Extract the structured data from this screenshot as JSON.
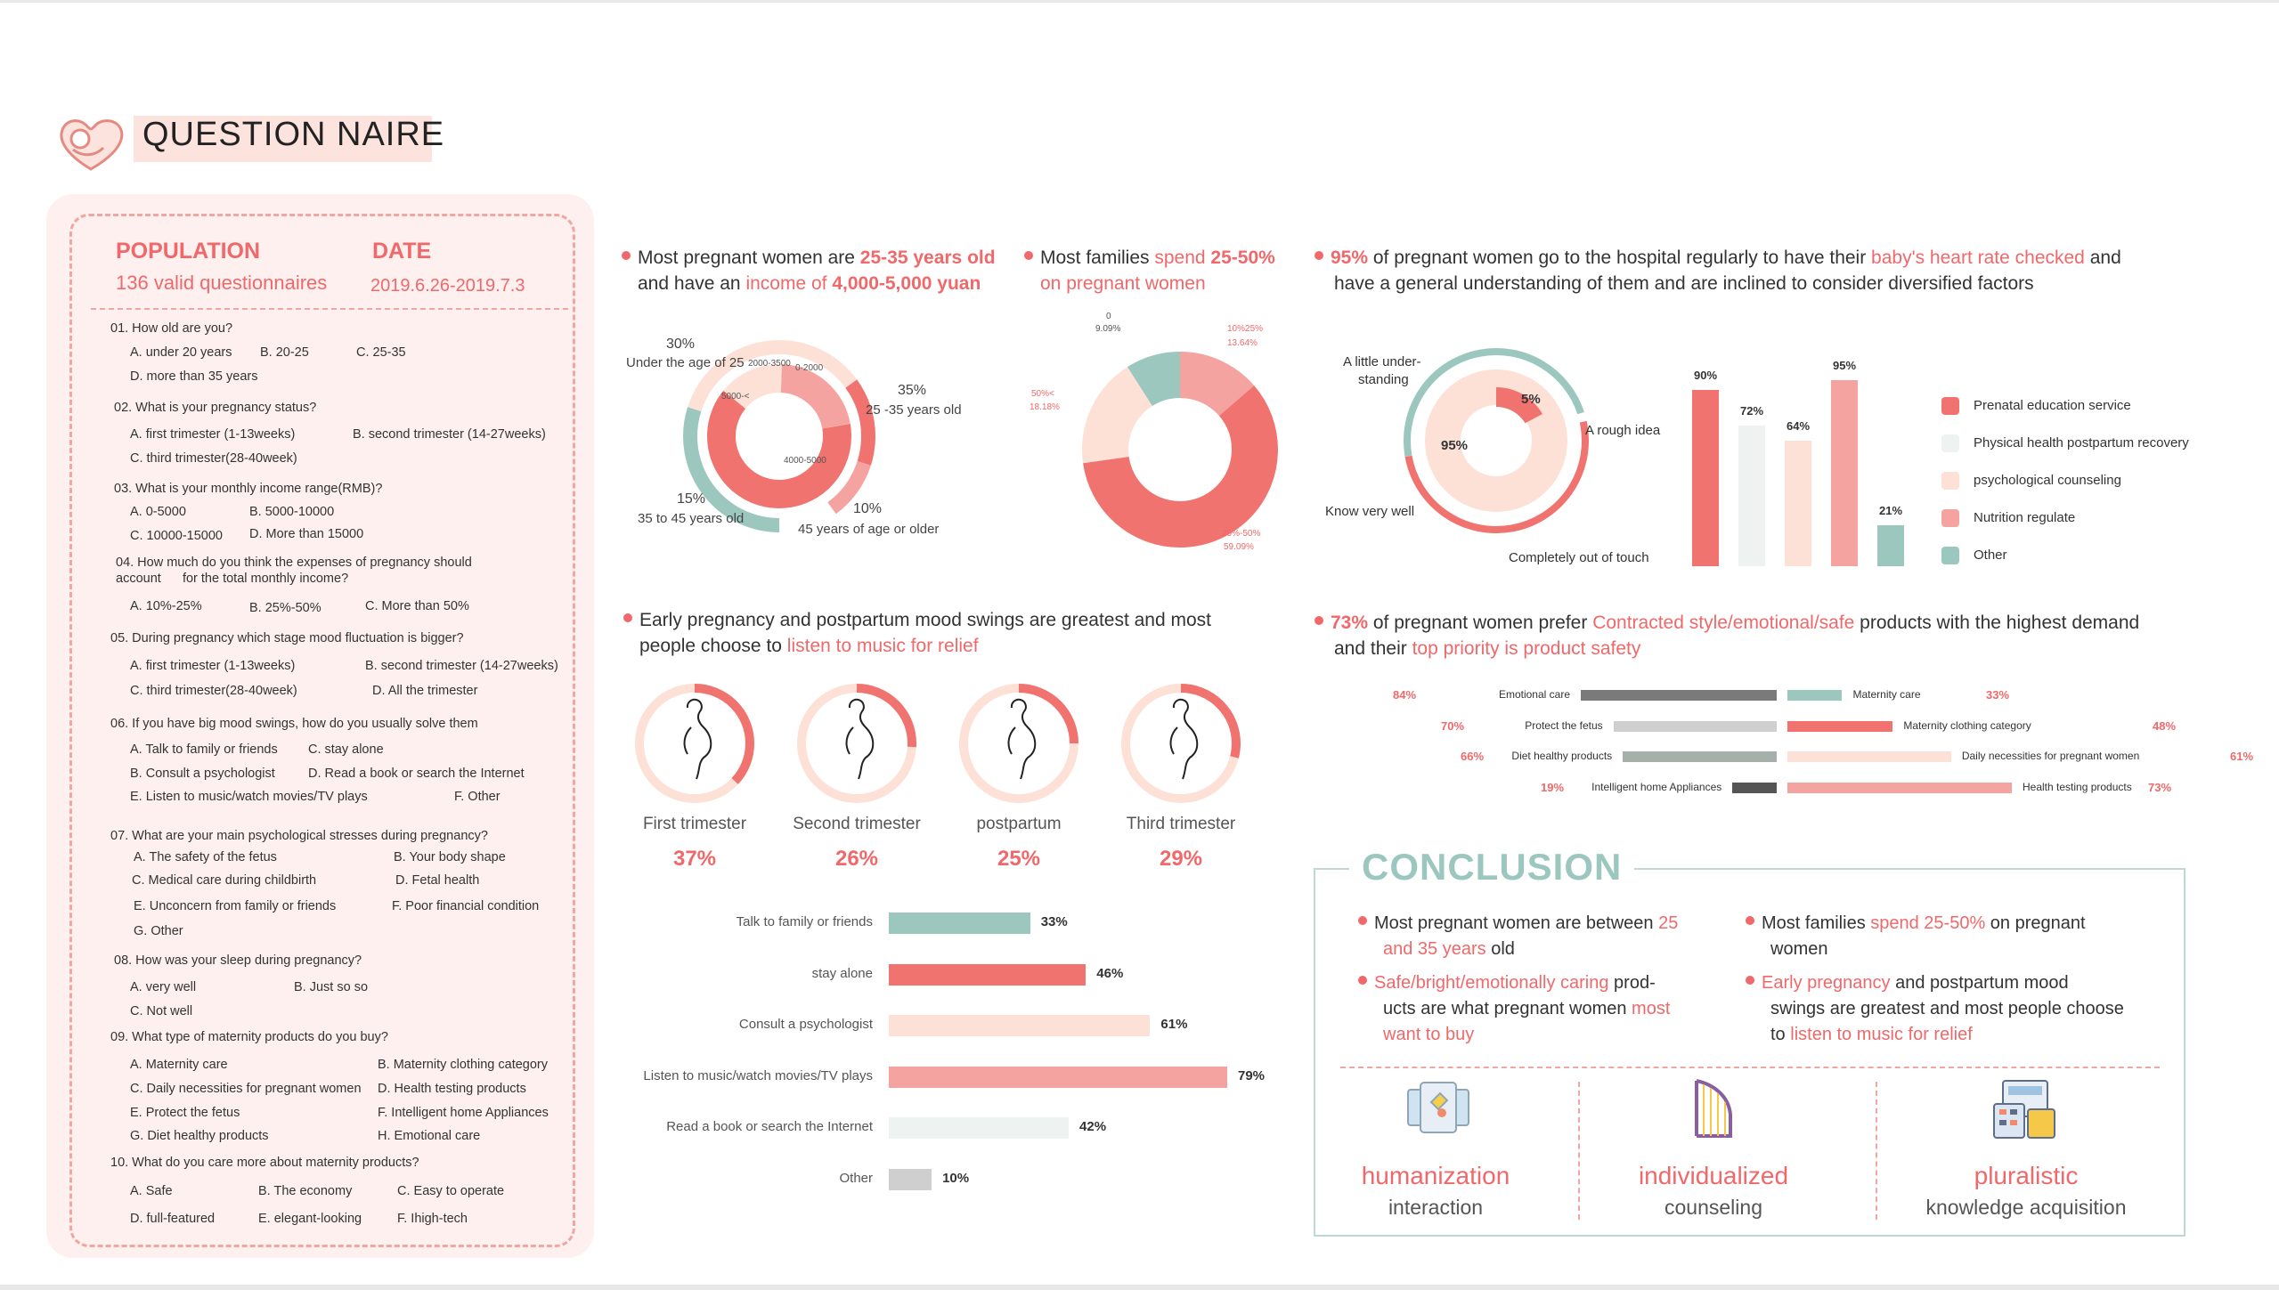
{
  "header": {
    "title": "QUESTION NAIRE"
  },
  "population": {
    "label": "POPULATION",
    "value": "136 valid questionnaires"
  },
  "date": {
    "label": "DATE",
    "value": "2019.6.26-2019.7.3"
  },
  "questions": [
    {
      "q": "01. How old are you?",
      "opts": [
        "A. under 20 years",
        "B. 20-25",
        "C. 25-35",
        "D. more than 35 years"
      ]
    },
    {
      "q": "02. What is your pregnancy status?",
      "opts": [
        "A. first trimester (1-13weeks)",
        "B. second trimester (14-27weeks)",
        "C. third trimester(28-40week)"
      ]
    },
    {
      "q": "03. What is your monthly income range(RMB)?",
      "opts": [
        "A. 0-5000",
        "B. 5000-10000",
        "C. 10000-15000",
        "D. More than 15000"
      ]
    },
    {
      "q": "04. How much do you think the expenses of pregnancy should",
      "q2": "account      for the total monthly income?",
      "opts": [
        "A. 10%-25%",
        "B. 25%-50%",
        "C. More than 50%"
      ]
    },
    {
      "q": "05. During pregnancy which stage mood fluctuation is bigger?",
      "opts": [
        "A. first trimester (1-13weeks)",
        "B. second trimester (14-27weeks)",
        "C. third trimester(28-40week)",
        "D. All the trimester"
      ]
    },
    {
      "q": "06. If you have big mood swings, how do you usually solve them",
      "opts": [
        "A. Talk to family or friends",
        "C. stay alone",
        "B. Consult a psychologist",
        "D. Read a book or search the Internet",
        "E. Listen to music/watch movies/TV plays",
        "F. Other"
      ]
    },
    {
      "q": "07. What are your main psychological stresses during pregnancy?",
      "opts": [
        "A. The safety of the fetus",
        "B. Your body shape",
        "C. Medical care during childbirth",
        "D. Fetal health",
        "E. Unconcern from family or friends",
        "F. Poor financial condition",
        "G. Other"
      ]
    },
    {
      "q": "08. How was your sleep during pregnancy?",
      "opts": [
        "A. very well",
        "B. Just so so",
        "C. Not well"
      ]
    },
    {
      "q": "09. What type of maternity products do you buy?",
      "opts": [
        "A. Maternity care",
        "B. Maternity clothing category",
        "C. Daily necessities for pregnant women",
        "D. Health testing products",
        "E. Protect the fetus",
        "F. Intelligent home Appliances",
        "G. Diet healthy products",
        "H. Emotional care"
      ]
    },
    {
      "q": "10. What do you care more about maternity products?",
      "opts": [
        "A. Safe",
        "B. The economy",
        "C. Easy to operate",
        "D. full-featured",
        "E. elegant-looking",
        "F. Ihigh-tech"
      ]
    }
  ],
  "sec1": {
    "t1": "Most pregnant women are ",
    "h1": "25-35 years old",
    "t2": "and have an ",
    "h2": "income of ",
    "h3": "4,000-5,000 yuan",
    "labels": {
      "a_pct": "30%",
      "a": "Under the age of 25",
      "b_pct": "35%",
      "b": "25 -35 years old",
      "c_pct": "15%",
      "c": "35 to 45 years old",
      "d_pct": "10%",
      "d": "45 years of age or older"
    },
    "inner": {
      "i1": "2000-3500",
      "i2": "0-2000",
      "i3": "5000-<",
      "i4": "4000-5000"
    }
  },
  "sec2": {
    "t1": "Most families ",
    "h1": "spend ",
    "h2": "25-50%",
    "h3": "on pregnant women",
    "labels": {
      "l1a": "0",
      "l1b": "9.09%",
      "l2a": "10%25%",
      "l2b": "13.64%",
      "l3a": "50%<",
      "l3b": "18.18%",
      "l4a": "25%-50%",
      "l4b": "59.09%"
    }
  },
  "sec3": {
    "n": "95%",
    "t1": " of pregnant women go to the hospital regularly  to have their ",
    "h1": "baby's heart rate checked",
    "t2": " and",
    "t3": "have a general understanding of them and are inclined to consider diversified factors",
    "ring": {
      "l1": "A little under-",
      "l1b": "standing",
      "l2": "A rough idea",
      "l3": "Know very well",
      "l4": "Completely out of touch",
      "p1": "5%",
      "p2": "95%"
    },
    "bars": [
      {
        "label": "90%",
        "v": 90,
        "color": "#f0736f"
      },
      {
        "label": "72%",
        "v": 72,
        "color": "#eef2f1"
      },
      {
        "label": "64%",
        "v": 64,
        "color": "#fde0d6"
      },
      {
        "label": "95%",
        "v": 95,
        "color": "#f5a3a0"
      },
      {
        "label": "21%",
        "v": 21,
        "color": "#9cc7bf"
      }
    ],
    "legend": [
      {
        "label": "Prenatal education service",
        "color": "#f0736f"
      },
      {
        "label": "Physical health postpartum recovery",
        "color": "#eef2f1"
      },
      {
        "label": "psychological counseling",
        "color": "#fde0d6"
      },
      {
        "label": "Nutrition regulate",
        "color": "#f5a3a0"
      },
      {
        "label": "Other",
        "color": "#9cc7bf"
      }
    ]
  },
  "sec4": {
    "t1": "Early pregnancy and postpartum mood swings are greatest and most",
    "t2": "people choose to ",
    "h1": "listen to music for relief",
    "stages": [
      {
        "name": "First trimester",
        "pct": "37%",
        "v": 37
      },
      {
        "name": "Second trimester",
        "pct": "26%",
        "v": 26
      },
      {
        "name": "postpartum",
        "pct": "25%",
        "v": 25
      },
      {
        "name": "Third trimester",
        "pct": "29%",
        "v": 29
      }
    ],
    "bars": [
      {
        "label": "Talk to family or friends",
        "pct": "33%",
        "v": 33,
        "color": "#9cc7bf"
      },
      {
        "label": "stay alone",
        "pct": "46%",
        "v": 46,
        "color": "#f0736f"
      },
      {
        "label": "Consult a psychologist",
        "pct": "61%",
        "v": 61,
        "color": "#fde0d6"
      },
      {
        "label": "Listen to music/watch movies/TV plays",
        "pct": "79%",
        "v": 79,
        "color": "#f5a3a0"
      },
      {
        "label": "Read a book or search the Internet",
        "pct": "42%",
        "v": 42,
        "color": "#eef2f1"
      },
      {
        "label": "Other",
        "pct": "10%",
        "v": 10,
        "color": "#cfcfcf"
      }
    ]
  },
  "sec5": {
    "n": "73%",
    "t1": " of pregnant women prefer ",
    "h1": "Contracted style/emotional/safe",
    "t2": " products with the highest demand",
    "t3": "and their ",
    "h2": "top priority is product safety",
    "left": [
      {
        "pct": "84%",
        "label": "Emotional care",
        "v": 84,
        "color": "#7a7a7a"
      },
      {
        "pct": "70%",
        "label": "Protect the fetus",
        "v": 70,
        "color": "#cfcfcf"
      },
      {
        "pct": "66%",
        "label": "Diet healthy products",
        "v": 66,
        "color": "#a5b0aa"
      },
      {
        "pct": "19%",
        "label": "Intelligent home Appliances",
        "v": 19,
        "color": "#555555"
      }
    ],
    "right": [
      {
        "pct": "33%",
        "label": "Maternity care",
        "v": 33,
        "color": "#9cc7bf"
      },
      {
        "pct": "48%",
        "label": "Maternity clothing category",
        "v": 48,
        "color": "#f0736f"
      },
      {
        "pct": "61%",
        "label": "Daily necessities for pregnant women",
        "v": 61,
        "color": "#fde0d6"
      },
      {
        "pct": "73%",
        "label": "Health testing products",
        "v": 73,
        "color": "#f5a3a0"
      }
    ]
  },
  "conclusion": {
    "title": "CONCLUSION",
    "c1a": "Most pregnant women are between ",
    "c1h": "25",
    "c1b": "and 35 years",
    "c1c": " old",
    "c2h1": "Safe/bright/emotionally caring",
    "c2a": " prod-",
    "c2b": "ucts are what pregnant women ",
    "c2h2": "most",
    "c2h3": "want to buy",
    "c3a": "Most families ",
    "c3h": "spend 25-50%",
    "c3b": " on pregnant",
    "c3c": "women",
    "c4h": "Early pregnancy",
    "c4a": " and postpartum mood",
    "c4b": "swings are greatest and most people choose",
    "c4c": "to ",
    "c4h2": "listen to music for relief",
    "features": [
      {
        "title": "humanization",
        "sub": "interaction",
        "icon": "tablet-icon"
      },
      {
        "title": "individualized",
        "sub": "counseling",
        "icon": "harp-icon"
      },
      {
        "title": "pluralistic",
        "sub": "knowledge acquisition",
        "icon": "calculator-icon"
      }
    ]
  }
}
